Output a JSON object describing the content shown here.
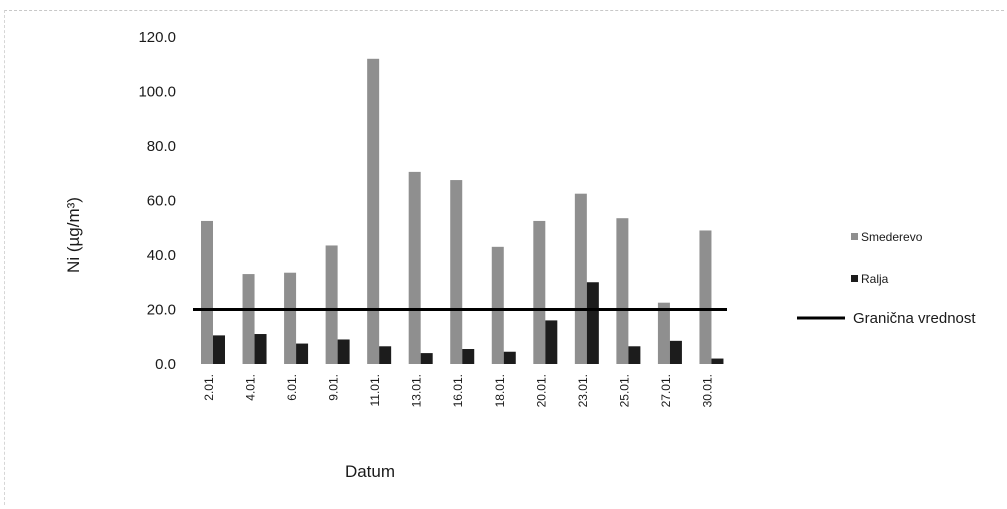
{
  "chart_data": {
    "type": "bar",
    "categories": [
      "2.01.",
      "4.01.",
      "6.01.",
      "9.01.",
      "11.01.",
      "13.01.",
      "16.01.",
      "18.01.",
      "20.01.",
      "23.01.",
      "25.01.",
      "27.01.",
      "30.01."
    ],
    "series": [
      {
        "name": "Smederevo",
        "values": [
          52.5,
          33.0,
          33.5,
          43.5,
          112.0,
          70.5,
          67.5,
          43.0,
          52.5,
          62.5,
          53.5,
          22.5,
          49.0
        ],
        "color": "#8f8f8f"
      },
      {
        "name": "Ralja",
        "values": [
          10.5,
          11.0,
          7.5,
          9.0,
          6.5,
          4.0,
          5.5,
          4.5,
          16.0,
          30.0,
          6.5,
          8.5,
          2.0
        ],
        "color": "#1c1c1c"
      }
    ],
    "reference_line": {
      "name": "Granična vrednost",
      "value": 20.0,
      "color": "#000000"
    },
    "ylabel": "Ni (µg/m³)",
    "xlabel": "Datum",
    "ylim": [
      0,
      120
    ],
    "ytick_labels": [
      "0.0",
      "20.0",
      "40.0",
      "60.0",
      "80.0",
      "100.0",
      "120.0"
    ],
    "grid": false,
    "legend_position": "right"
  }
}
